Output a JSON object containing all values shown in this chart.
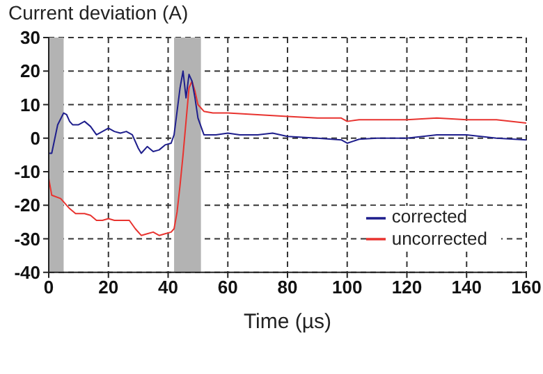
{
  "chart_data": {
    "type": "line",
    "title": "Current deviation (A)",
    "xlabel": "Time (µs)",
    "xlim": [
      0,
      160
    ],
    "xticks": [
      0,
      20,
      40,
      60,
      80,
      100,
      120,
      140,
      160
    ],
    "ylim": [
      -40,
      30
    ],
    "yticks": [
      -40,
      -30,
      -20,
      -10,
      0,
      10,
      20,
      30
    ],
    "grid": true,
    "legend": "right",
    "line_style": "solid",
    "bands": [
      {
        "axis": "x",
        "from": 0,
        "to": 5,
        "color": "#b3b3b3"
      },
      {
        "axis": "x",
        "from": 42,
        "to": 51,
        "color": "#b3b3b3"
      }
    ],
    "series": [
      {
        "name": "uncorrected",
        "color": "#e8332f",
        "x": [
          0,
          1,
          4,
          7,
          9,
          12,
          14,
          16,
          18,
          20,
          22,
          24,
          27,
          29,
          31,
          33,
          35,
          37,
          39,
          41,
          42,
          43,
          44,
          45,
          46,
          47,
          48,
          49,
          50,
          52,
          55,
          60,
          70,
          80,
          90,
          98,
          100,
          104,
          110,
          120,
          130,
          140,
          150,
          160
        ],
        "values": [
          -12,
          -17,
          -18,
          -21,
          -22.5,
          -22.5,
          -23,
          -24.5,
          -24.5,
          -24,
          -24.5,
          -24.5,
          -24.5,
          -27,
          -29,
          -28.5,
          -28,
          -29,
          -28.5,
          -28,
          -27,
          -22,
          -14,
          -5,
          5,
          15,
          17,
          14,
          10,
          8,
          7.5,
          7.5,
          7,
          6.5,
          6,
          6,
          5,
          5.5,
          5.5,
          5.5,
          6,
          5.5,
          5.5,
          4.5
        ]
      },
      {
        "name": "corrected",
        "color": "#1e1e8c",
        "x": [
          0,
          1,
          3,
          5,
          6,
          7,
          8,
          10,
          12,
          14,
          16,
          18,
          20,
          22,
          24,
          26,
          28,
          30,
          31,
          33,
          35,
          37,
          39,
          41,
          42,
          43,
          44,
          45,
          46,
          47,
          48,
          49,
          50,
          51,
          52,
          56,
          60,
          64,
          70,
          75,
          80,
          90,
          98,
          100,
          104,
          110,
          120,
          130,
          140,
          150,
          160
        ],
        "values": [
          -4.5,
          -4.5,
          4,
          7.5,
          7,
          5,
          4,
          4,
          5,
          3.5,
          1,
          2,
          3,
          2,
          1.5,
          2,
          1,
          -3,
          -4.5,
          -2.5,
          -4,
          -3.5,
          -2,
          -1.5,
          1,
          8,
          15,
          20,
          12,
          19,
          17,
          12,
          6,
          3.5,
          1,
          1,
          1.5,
          1,
          1,
          1.5,
          0.5,
          0,
          -0.5,
          -1.5,
          -0.3,
          0,
          0,
          1,
          1,
          0,
          -0.5
        ]
      }
    ]
  }
}
